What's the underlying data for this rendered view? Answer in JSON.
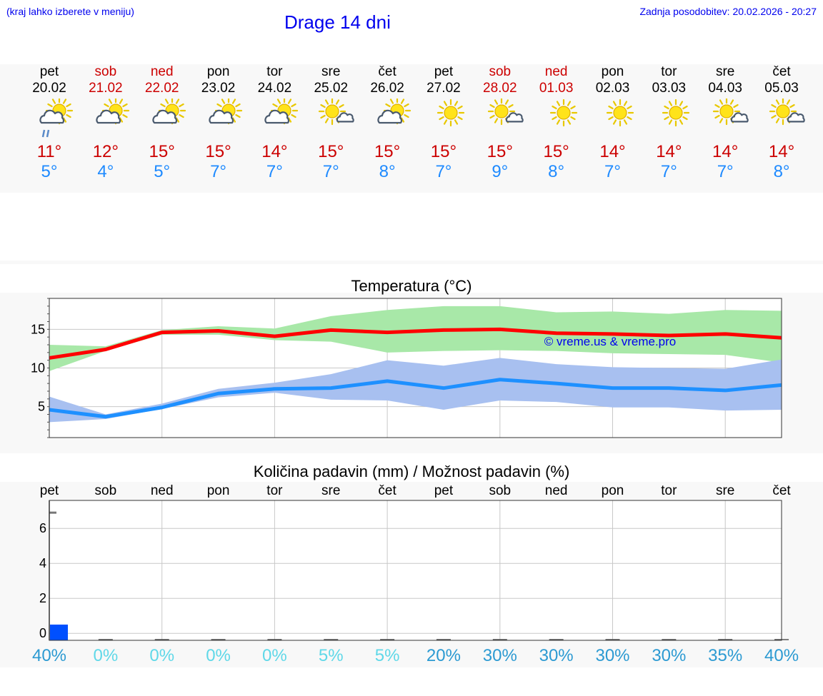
{
  "header": {
    "hint": "(kraj lahko izberete v meniju)",
    "title": "Drage 14 dni",
    "updated": "Zadnja posodobitev: 20.02.2026 - 20:27"
  },
  "days": [
    {
      "name": "pet",
      "date": "20.02",
      "weekend": false,
      "icon": "sun-cloud-rain-icon",
      "max": "11°",
      "min": "5°"
    },
    {
      "name": "sob",
      "date": "21.02",
      "weekend": true,
      "icon": "sun-cloud-icon",
      "max": "12°",
      "min": "4°"
    },
    {
      "name": "ned",
      "date": "22.02",
      "weekend": true,
      "icon": "sun-cloud-icon",
      "max": "15°",
      "min": "5°"
    },
    {
      "name": "pon",
      "date": "23.02",
      "weekend": false,
      "icon": "sun-cloud-icon",
      "max": "15°",
      "min": "7°"
    },
    {
      "name": "tor",
      "date": "24.02",
      "weekend": false,
      "icon": "sun-cloud-icon",
      "max": "14°",
      "min": "7°"
    },
    {
      "name": "sre",
      "date": "25.02",
      "weekend": false,
      "icon": "sun-small-cloud-icon",
      "max": "15°",
      "min": "7°"
    },
    {
      "name": "čet",
      "date": "26.02",
      "weekend": false,
      "icon": "sun-cloud-icon",
      "max": "15°",
      "min": "8°"
    },
    {
      "name": "pet",
      "date": "27.02",
      "weekend": false,
      "icon": "sun-icon",
      "max": "15°",
      "min": "7°"
    },
    {
      "name": "sob",
      "date": "28.02",
      "weekend": true,
      "icon": "sun-small-cloud-icon",
      "max": "15°",
      "min": "9°"
    },
    {
      "name": "ned",
      "date": "01.03",
      "weekend": true,
      "icon": "sun-icon",
      "max": "15°",
      "min": "8°"
    },
    {
      "name": "pon",
      "date": "02.03",
      "weekend": false,
      "icon": "sun-icon",
      "max": "14°",
      "min": "7°"
    },
    {
      "name": "tor",
      "date": "03.03",
      "weekend": false,
      "icon": "sun-icon",
      "max": "14°",
      "min": "7°"
    },
    {
      "name": "sre",
      "date": "04.03",
      "weekend": false,
      "icon": "sun-small-cloud-icon",
      "max": "14°",
      "min": "7°"
    },
    {
      "name": "čet",
      "date": "05.03",
      "weekend": false,
      "icon": "sun-small-cloud-icon",
      "max": "14°",
      "min": "8°"
    }
  ],
  "colors": {
    "max_line": "#ff0000",
    "max_band": "#a8e8a8",
    "min_line": "#1e90ff",
    "min_band": "#a8c0f0",
    "bar": "#0050ff",
    "prob_high": "#2c9ad2",
    "prob_low": "#5fd8e8",
    "link": "#0000ee"
  },
  "chart_data": [
    {
      "type": "line",
      "title": "Temperatura (°C)",
      "watermark": "© vreme.us & vreme.pro",
      "x": [
        0,
        1,
        2,
        3,
        4,
        5,
        6,
        7,
        8,
        9,
        10,
        11,
        12,
        13
      ],
      "ylim": [
        1,
        19
      ],
      "yticks": [
        5,
        10,
        15
      ],
      "series": [
        {
          "name": "max",
          "values": [
            11.3,
            12.4,
            14.6,
            14.8,
            14.1,
            14.9,
            14.6,
            14.9,
            15.0,
            14.5,
            14.4,
            14.2,
            14.4,
            13.9
          ]
        },
        {
          "name": "max_low",
          "values": [
            9.6,
            12.2,
            14.3,
            14.3,
            13.6,
            13.4,
            12.0,
            12.2,
            12.3,
            12.2,
            11.9,
            11.8,
            11.7,
            10.7
          ]
        },
        {
          "name": "max_high",
          "values": [
            13.0,
            12.8,
            14.9,
            15.4,
            15.1,
            16.7,
            17.5,
            18.0,
            18.0,
            17.2,
            17.3,
            17.0,
            17.5,
            17.4
          ]
        },
        {
          "name": "min",
          "values": [
            4.6,
            3.7,
            4.9,
            6.7,
            7.3,
            7.4,
            8.3,
            7.4,
            8.5,
            8.0,
            7.4,
            7.4,
            7.1,
            7.8
          ]
        },
        {
          "name": "min_low",
          "values": [
            3.0,
            3.4,
            4.7,
            6.2,
            6.8,
            5.9,
            5.8,
            4.6,
            5.8,
            5.6,
            4.9,
            4.9,
            4.5,
            4.6
          ]
        },
        {
          "name": "min_high",
          "values": [
            6.3,
            4.0,
            5.4,
            7.3,
            8.1,
            9.2,
            11.0,
            10.3,
            11.3,
            10.5,
            10.1,
            10.0,
            9.9,
            11.1
          ]
        }
      ]
    },
    {
      "type": "bar",
      "title": "Količina padavin (mm) / Možnost padavin (%)",
      "categories": [
        "pet",
        "sob",
        "ned",
        "pon",
        "tor",
        "sre",
        "čet",
        "pet",
        "sob",
        "ned",
        "pon",
        "tor",
        "sre",
        "čet"
      ],
      "values": [
        0.5,
        0,
        0,
        0,
        0,
        0,
        0,
        0,
        0,
        0,
        0,
        0,
        0,
        0
      ],
      "ylim": [
        -0.4,
        7.6
      ],
      "yticks": [
        0,
        2,
        4,
        6
      ],
      "probability": [
        "40%",
        "0%",
        "0%",
        "0%",
        "0%",
        "5%",
        "5%",
        "20%",
        "30%",
        "30%",
        "30%",
        "30%",
        "35%",
        "40%"
      ],
      "probability_values": [
        40,
        0,
        0,
        0,
        0,
        5,
        5,
        20,
        30,
        30,
        30,
        30,
        35,
        40
      ]
    }
  ]
}
